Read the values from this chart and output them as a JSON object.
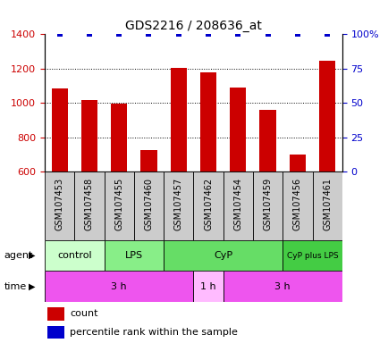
{
  "title": "GDS2216 / 208636_at",
  "samples": [
    "GSM107453",
    "GSM107458",
    "GSM107455",
    "GSM107460",
    "GSM107457",
    "GSM107462",
    "GSM107454",
    "GSM107459",
    "GSM107456",
    "GSM107461"
  ],
  "counts": [
    1085,
    1015,
    995,
    725,
    1205,
    1180,
    1090,
    960,
    700,
    1245
  ],
  "percentile_ranks": [
    100,
    100,
    100,
    100,
    100,
    100,
    100,
    100,
    100,
    100
  ],
  "ylim_left": [
    600,
    1400
  ],
  "ylim_right": [
    0,
    100
  ],
  "yticks_left": [
    600,
    800,
    1000,
    1200,
    1400
  ],
  "yticks_right": [
    0,
    25,
    50,
    75,
    100
  ],
  "bar_color": "#cc0000",
  "dot_color": "#0000cc",
  "agent_groups": [
    {
      "label": "control",
      "start": 0,
      "end": 2,
      "color": "#ccffcc"
    },
    {
      "label": "LPS",
      "start": 2,
      "end": 4,
      "color": "#88ee88"
    },
    {
      "label": "CyP",
      "start": 4,
      "end": 8,
      "color": "#66dd66"
    },
    {
      "label": "CyP plus LPS",
      "start": 8,
      "end": 10,
      "color": "#44cc44"
    }
  ],
  "time_groups": [
    {
      "label": "3 h",
      "start": 0,
      "end": 5,
      "color": "#ee55ee"
    },
    {
      "label": "1 h",
      "start": 5,
      "end": 6,
      "color": "#ffbbff"
    },
    {
      "label": "3 h",
      "start": 6,
      "end": 10,
      "color": "#ee55ee"
    }
  ],
  "sample_cell_color": "#cccccc",
  "tick_label_color_left": "#cc0000",
  "tick_label_color_right": "#0000cc",
  "grid_dotted_values": [
    800,
    1000,
    1200
  ],
  "agent_label": "agent",
  "time_label": "time",
  "legend_count_label": "count",
  "legend_pct_label": "percentile rank within the sample"
}
